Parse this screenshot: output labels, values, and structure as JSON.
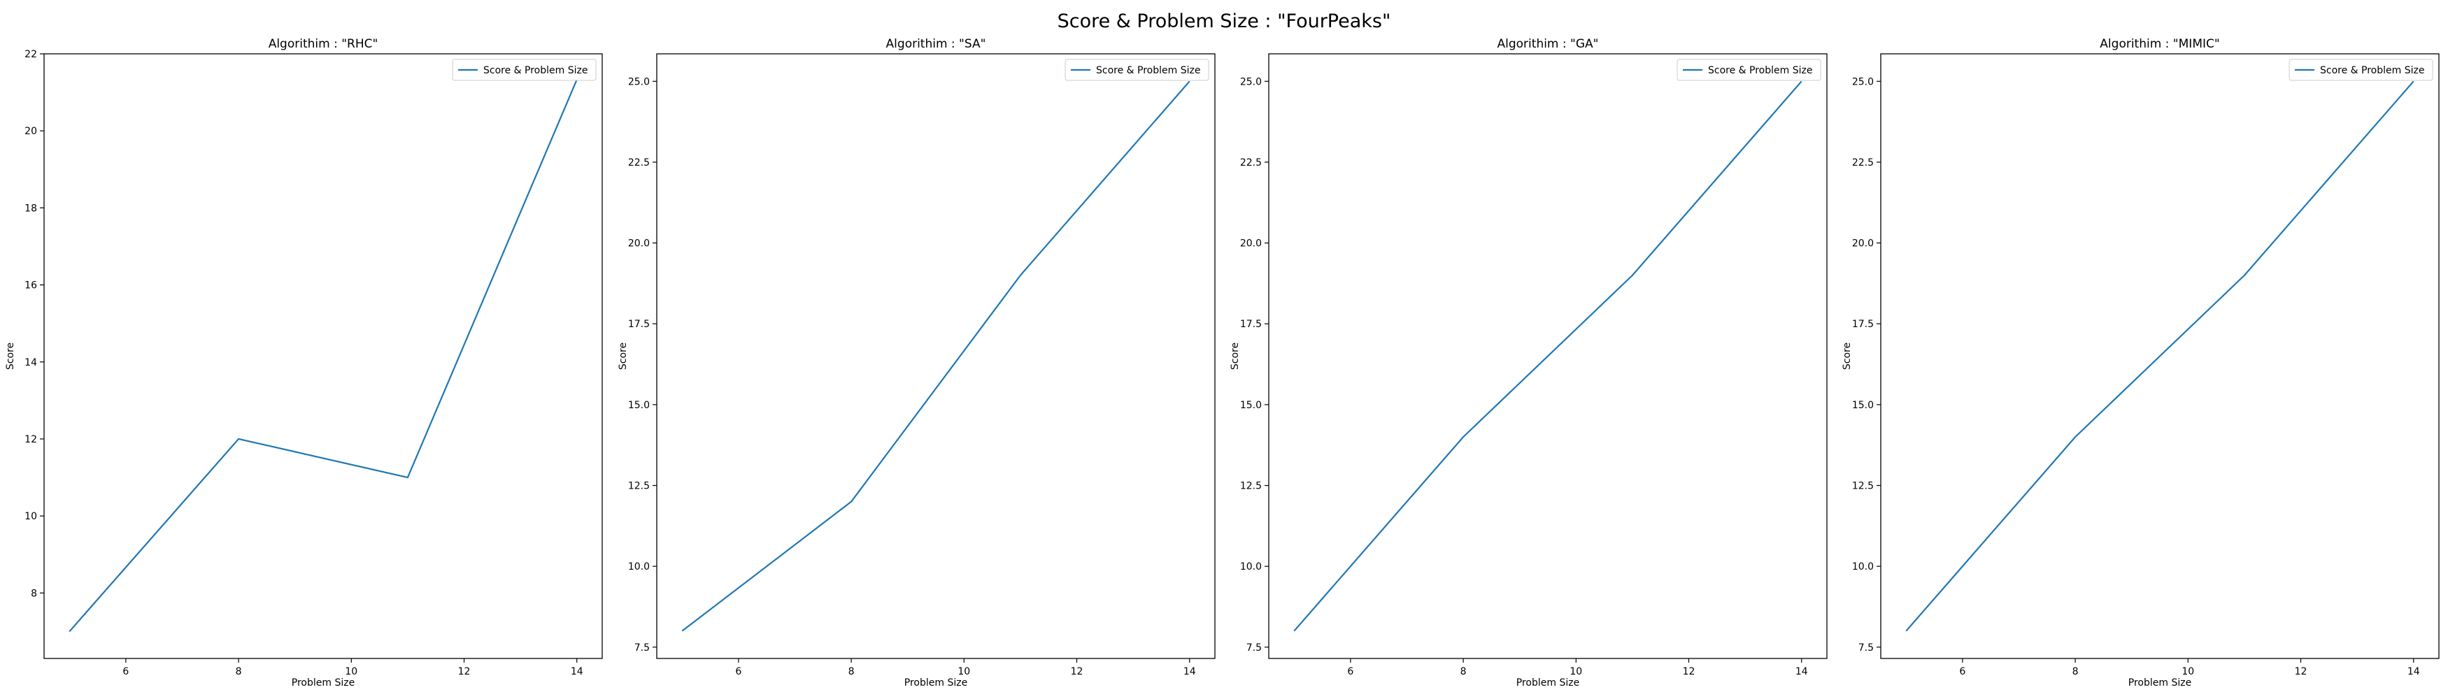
{
  "figure": {
    "suptitle": "Score & Problem Size : \"FourPeaks\""
  },
  "colors": {
    "line": "#1f77b4",
    "axes": "#000000",
    "legend_border": "#cccccc"
  },
  "chart_data": [
    {
      "type": "line",
      "title": "Algorithim : \"RHC\"",
      "xlabel": "Problem Size",
      "ylabel": "Score",
      "x": [
        5,
        8,
        11,
        14
      ],
      "series": [
        {
          "name": "Score & Problem Size",
          "values": [
            7,
            12,
            11,
            21.33
          ]
        }
      ],
      "xlim": [
        4.55,
        14.45
      ],
      "ylim": [
        6.3,
        22.0
      ],
      "xticks": [
        6,
        8,
        10,
        12,
        14
      ],
      "yticks": [
        8,
        10,
        12,
        14,
        16,
        18,
        20,
        22
      ],
      "ytick_labels": [
        "8",
        "10",
        "12",
        "14",
        "16",
        "18",
        "20",
        "22"
      ],
      "grid": false,
      "legend": "upper right"
    },
    {
      "type": "line",
      "title": "Algorithim : \"SA\"",
      "xlabel": "Problem Size",
      "ylabel": "Score",
      "x": [
        5,
        8,
        11,
        14
      ],
      "series": [
        {
          "name": "Score & Problem Size",
          "values": [
            8,
            12,
            19,
            25
          ]
        }
      ],
      "xlim": [
        4.55,
        14.45
      ],
      "ylim": [
        7.15,
        25.85
      ],
      "xticks": [
        6,
        8,
        10,
        12,
        14
      ],
      "yticks": [
        7.5,
        10,
        12.5,
        15,
        17.5,
        20,
        22.5,
        25
      ],
      "ytick_labels": [
        "7.5",
        "10.0",
        "12.5",
        "15.0",
        "17.5",
        "20.0",
        "22.5",
        "25.0"
      ],
      "grid": false,
      "legend": "upper right"
    },
    {
      "type": "line",
      "title": "Algorithim : \"GA\"",
      "xlabel": "Problem Size",
      "ylabel": "Score",
      "x": [
        5,
        8,
        11,
        14
      ],
      "series": [
        {
          "name": "Score & Problem Size",
          "values": [
            8,
            14,
            19,
            25
          ]
        }
      ],
      "xlim": [
        4.55,
        14.45
      ],
      "ylim": [
        7.15,
        25.85
      ],
      "xticks": [
        6,
        8,
        10,
        12,
        14
      ],
      "yticks": [
        7.5,
        10,
        12.5,
        15,
        17.5,
        20,
        22.5,
        25
      ],
      "ytick_labels": [
        "7.5",
        "10.0",
        "12.5",
        "15.0",
        "17.5",
        "20.0",
        "22.5",
        "25.0"
      ],
      "grid": false,
      "legend": "upper right"
    },
    {
      "type": "line",
      "title": "Algorithim : \"MIMIC\"",
      "xlabel": "Problem Size",
      "ylabel": "Score",
      "x": [
        5,
        8,
        11,
        14
      ],
      "series": [
        {
          "name": "Score & Problem Size",
          "values": [
            8,
            14,
            19,
            25
          ]
        }
      ],
      "xlim": [
        4.55,
        14.45
      ],
      "ylim": [
        7.15,
        25.85
      ],
      "xticks": [
        6,
        8,
        10,
        12,
        14
      ],
      "yticks": [
        7.5,
        10,
        12.5,
        15,
        17.5,
        20,
        22.5,
        25
      ],
      "ytick_labels": [
        "7.5",
        "10.0",
        "12.5",
        "15.0",
        "17.5",
        "20.0",
        "22.5",
        "25.0"
      ],
      "grid": false,
      "legend": "upper right"
    }
  ]
}
